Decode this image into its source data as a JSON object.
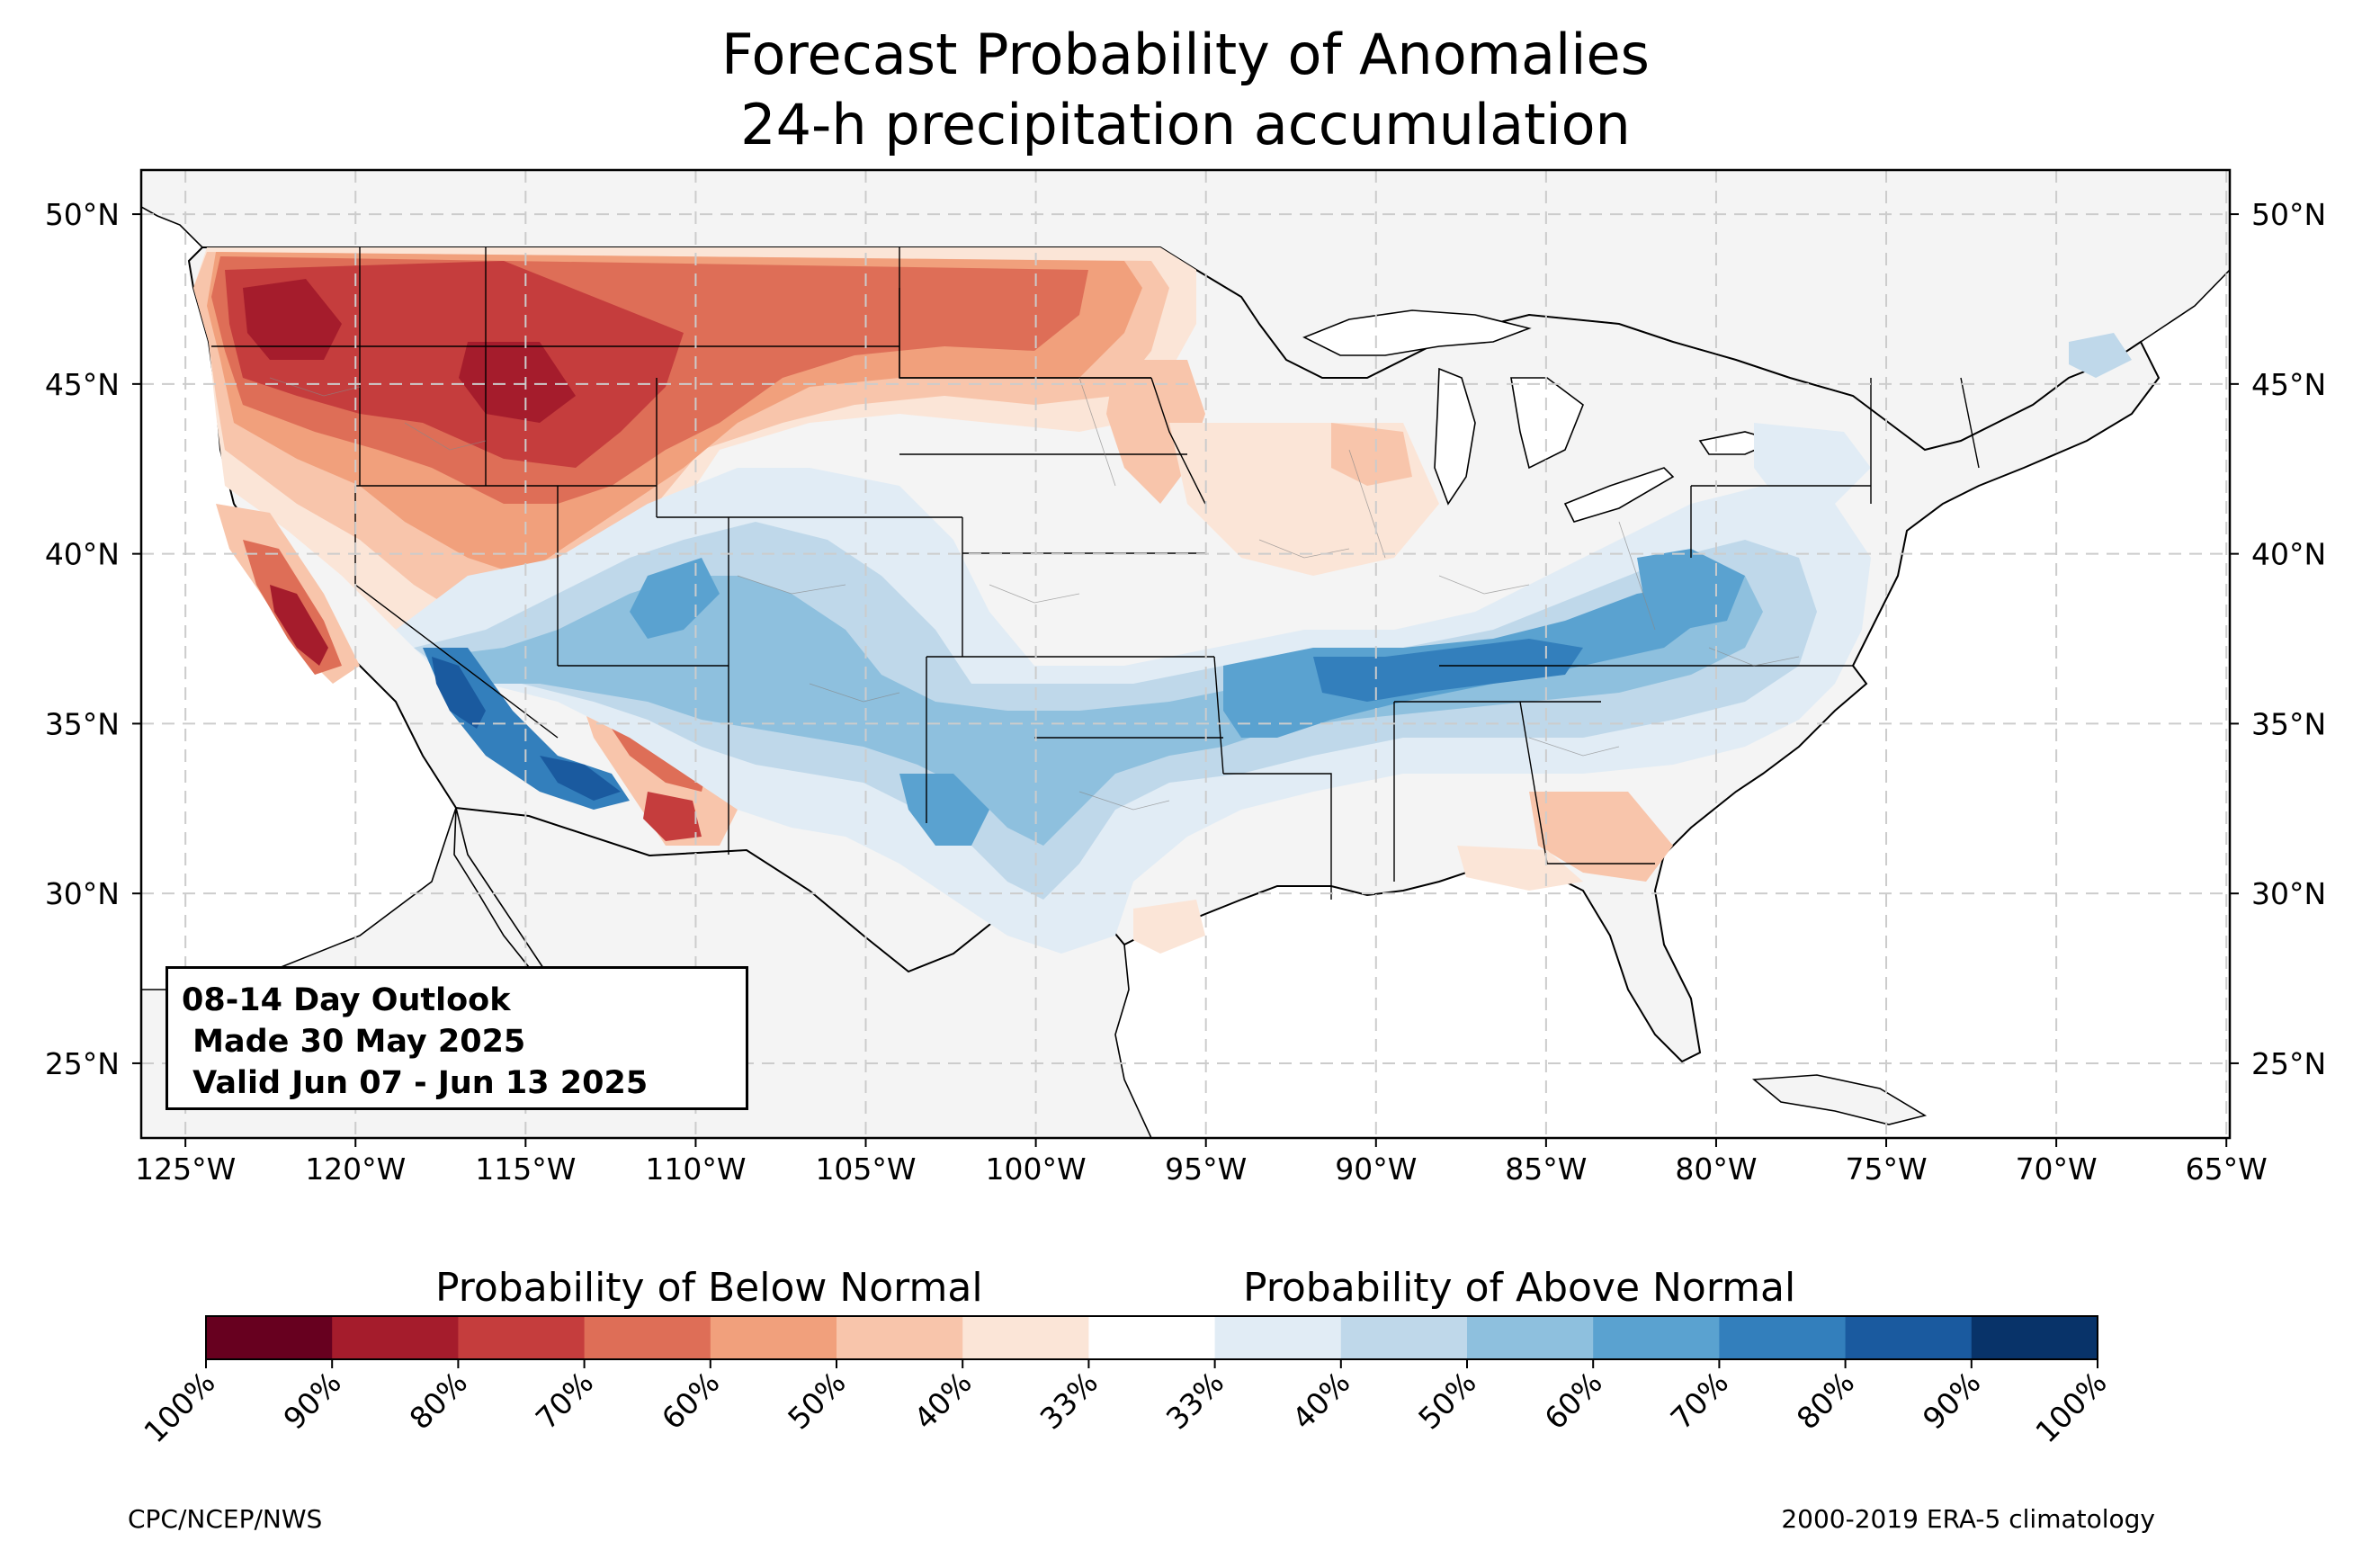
{
  "title": {
    "line1": "Forecast Probability of Anomalies",
    "line2": "24-h precipitation accumulation"
  },
  "map": {
    "extent": {
      "lon": [
        -126.3,
        -64.9
      ],
      "lat": [
        22.8,
        51.3
      ]
    },
    "lon_ticks": [
      "125°W",
      "120°W",
      "115°W",
      "110°W",
      "105°W",
      "100°W",
      "95°W",
      "90°W",
      "85°W",
      "80°W",
      "75°W",
      "70°W",
      "65°W"
    ],
    "lat_ticks": [
      "25°N",
      "30°N",
      "35°N",
      "40°N",
      "45°N",
      "50°N"
    ],
    "grid": "dashed",
    "land_color": "#f4f4f4",
    "below_normal_regions": [
      {
        "area": "Pacific Northwest / Washington-Oregon",
        "peak_category": "80-90%"
      },
      {
        "area": "Idaho / western Montana",
        "peak_category": "80-90%"
      },
      {
        "area": "Northern Plains (Montana, North Dakota, South Dakota)",
        "peak_category": "50-60%"
      },
      {
        "area": "Central California",
        "peak_category": "80-90%"
      },
      {
        "area": "Southern New Mexico",
        "peak_category": "70-80%"
      },
      {
        "area": "Iowa / Illinois / Wisconsin",
        "peak_category": "40-50%"
      },
      {
        "area": "Georgia / northern Florida",
        "peak_category": "40-50%"
      }
    ],
    "above_normal_regions": [
      {
        "area": "Southern Nevada / Arizona",
        "peak_category": "80-90%"
      },
      {
        "area": "Colorado / Utah",
        "peak_category": "60-70%"
      },
      {
        "area": "Southern Plains / Texas",
        "peak_category": "60-70%"
      },
      {
        "area": "Tennessee / Kentucky / Arkansas",
        "peak_category": "60-70%"
      },
      {
        "area": "Virginia / Pennsylvania / Ohio Valley",
        "peak_category": "60-70%"
      },
      {
        "area": "Northern Maine",
        "peak_category": "40-50%"
      }
    ]
  },
  "outlook_box": {
    "line1": "08-14 Day Outlook",
    "line2": " Made 30 May 2025",
    "line3": " Valid Jun 07 - Jun 13 2025"
  },
  "colorbar": {
    "below_label": "Probability of Below Normal",
    "above_label": "Probability of Above Normal",
    "tick_labels": [
      "100%",
      "90%",
      "80%",
      "70%",
      "60%",
      "50%",
      "40%",
      "33%",
      "33%",
      "40%",
      "50%",
      "60%",
      "70%",
      "80%",
      "90%",
      "100%"
    ],
    "colors": [
      "#67001f",
      "#a51c2c",
      "#c53d3d",
      "#de6e57",
      "#f1a07c",
      "#f8c5ab",
      "#fbe5d7",
      "#ffffff",
      "#e1ecf5",
      "#bfd8ea",
      "#8ec0de",
      "#5aa2d0",
      "#337fbc",
      "#1a5a9f",
      "#083369"
    ]
  },
  "footer": {
    "left": "CPC/NCEP/NWS",
    "right": "2000-2019 ERA-5 climatology"
  }
}
